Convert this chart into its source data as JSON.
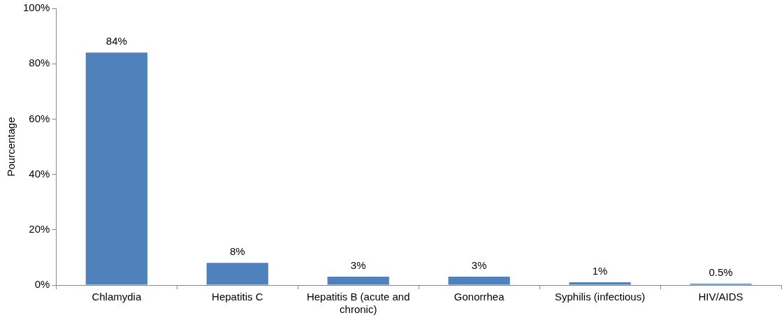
{
  "chart_data": {
    "type": "bar",
    "ylabel": "Pourcentage",
    "categories": [
      "Chlamydia",
      "Hepatitis C",
      "Hepatitis B (acute and chronic)",
      "Gonorrhea",
      "Syphilis (infectious)",
      "HIV/AIDS"
    ],
    "values": [
      84,
      8,
      3,
      3,
      1,
      0.5
    ],
    "value_labels": [
      "84%",
      "8%",
      "3%",
      "3%",
      "1%",
      "0.5%"
    ],
    "color": "#4f81bd",
    "ylim": [
      0,
      100
    ],
    "yticks": [
      {
        "value": 0,
        "label": "0%"
      },
      {
        "value": 20,
        "label": "20%"
      },
      {
        "value": 40,
        "label": "40%"
      },
      {
        "value": 60,
        "label": "60%"
      },
      {
        "value": 80,
        "label": "80%"
      },
      {
        "value": 100,
        "label": "100%"
      }
    ],
    "grid": false,
    "legend": false
  }
}
